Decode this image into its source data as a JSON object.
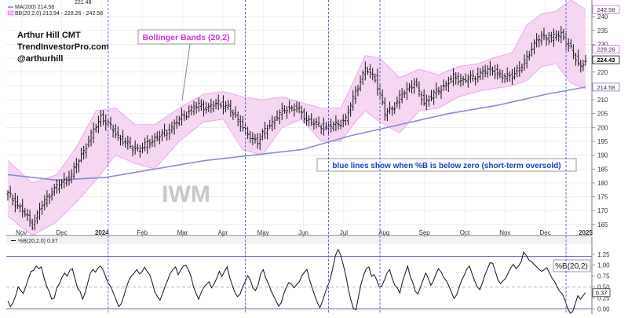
{
  "chart_data": [
    {
      "type": "ohlc",
      "panel": "price",
      "ticker_watermark": "IWM",
      "author_lines": [
        "Arthur Hill CMT",
        "TrendInvestorPro.com",
        "@arthurhill"
      ],
      "legend": [
        {
          "name": "MA(200) 214.58",
          "color": "#7b7bd0"
        },
        {
          "name": "BB(20,2.0) 213.94 - 228.26 - 242.58",
          "color": "#e060e0"
        }
      ],
      "legend_top_partial": "221.48",
      "annotations": {
        "bollinger_label": "Bollinger Bands (20,2)",
        "note": "blue lines show when %B is below zero (short-term oversold)"
      },
      "y_ticks": [
        165,
        170,
        175,
        180,
        185,
        190,
        195,
        200,
        205,
        210,
        215,
        220,
        225,
        230,
        235,
        240
      ],
      "ylim": [
        161,
        246
      ],
      "price_labels": [
        {
          "value": 242.58,
          "text": "242.58",
          "color": "#e060e0"
        },
        {
          "value": 228.26,
          "text": "228.26",
          "color": "#e060e0"
        },
        {
          "value": 224.43,
          "text": "224.43",
          "color": "#000000"
        },
        {
          "value": 214.58,
          "text": "214.58",
          "color": "#7b7bd0"
        }
      ],
      "x_months": [
        {
          "label": "Nov",
          "bold": false
        },
        {
          "label": "Dec",
          "bold": false
        },
        {
          "label": "2024",
          "bold": true
        },
        {
          "label": "Feb",
          "bold": false
        },
        {
          "label": "Mar",
          "bold": false
        },
        {
          "label": "Apr",
          "bold": false
        },
        {
          "label": "May",
          "bold": false
        },
        {
          "label": "Jun",
          "bold": false
        },
        {
          "label": "Jul",
          "bold": false
        },
        {
          "label": "Aug",
          "bold": false
        },
        {
          "label": "Sep",
          "bold": false
        },
        {
          "label": "Oct",
          "bold": false
        },
        {
          "label": "Nov",
          "bold": false
        },
        {
          "label": "Dec",
          "bold": false
        },
        {
          "label": "2025",
          "bold": true
        }
      ],
      "close_path": [
        [
          0,
          176
        ],
        [
          6,
          170
        ],
        [
          10,
          165
        ],
        [
          14,
          172
        ],
        [
          18,
          177
        ],
        [
          22,
          180
        ],
        [
          26,
          183
        ],
        [
          30,
          190
        ],
        [
          34,
          197
        ],
        [
          38,
          204
        ],
        [
          42,
          200
        ],
        [
          46,
          196
        ],
        [
          50,
          193
        ],
        [
          54,
          192
        ],
        [
          58,
          195
        ],
        [
          62,
          197
        ],
        [
          66,
          199
        ],
        [
          70,
          203
        ],
        [
          74,
          206
        ],
        [
          78,
          208
        ],
        [
          82,
          207
        ],
        [
          86,
          209
        ],
        [
          90,
          207
        ],
        [
          94,
          203
        ],
        [
          98,
          197
        ],
        [
          102,
          195
        ],
        [
          106,
          200
        ],
        [
          110,
          204
        ],
        [
          114,
          207
        ],
        [
          118,
          207
        ],
        [
          122,
          203
        ],
        [
          126,
          201
        ],
        [
          130,
          200
        ],
        [
          134,
          201
        ],
        [
          138,
          203
        ],
        [
          142,
          213
        ],
        [
          146,
          221
        ],
        [
          150,
          218
        ],
        [
          154,
          205
        ],
        [
          158,
          208
        ],
        [
          162,
          213
        ],
        [
          166,
          216
        ],
        [
          170,
          209
        ],
        [
          174,
          212
        ],
        [
          178,
          215
        ],
        [
          182,
          218
        ],
        [
          186,
          217
        ],
        [
          190,
          218
        ],
        [
          194,
          220
        ],
        [
          198,
          221
        ],
        [
          202,
          218
        ],
        [
          206,
          219
        ],
        [
          210,
          222
        ],
        [
          214,
          229
        ],
        [
          218,
          233
        ],
        [
          222,
          232
        ],
        [
          226,
          234
        ],
        [
          230,
          228
        ],
        [
          234,
          222
        ],
        [
          236,
          224.43
        ]
      ],
      "ma200_path": [
        [
          0,
          183
        ],
        [
          20,
          181
        ],
        [
          40,
          182
        ],
        [
          60,
          185
        ],
        [
          80,
          188
        ],
        [
          100,
          190
        ],
        [
          120,
          192
        ],
        [
          140,
          197
        ],
        [
          160,
          201
        ],
        [
          180,
          205
        ],
        [
          200,
          208
        ],
        [
          220,
          212
        ],
        [
          236,
          214.58
        ]
      ],
      "bb_upper_path": [
        [
          0,
          188
        ],
        [
          10,
          180
        ],
        [
          20,
          183
        ],
        [
          28,
          193
        ],
        [
          36,
          206
        ],
        [
          44,
          207
        ],
        [
          52,
          201
        ],
        [
          60,
          201
        ],
        [
          70,
          207
        ],
        [
          80,
          212
        ],
        [
          88,
          213
        ],
        [
          96,
          211
        ],
        [
          104,
          210
        ],
        [
          112,
          211
        ],
        [
          120,
          209
        ],
        [
          128,
          207
        ],
        [
          136,
          207
        ],
        [
          142,
          218
        ],
        [
          146,
          226
        ],
        [
          152,
          225
        ],
        [
          160,
          218
        ],
        [
          168,
          221
        ],
        [
          176,
          219
        ],
        [
          184,
          222
        ],
        [
          192,
          223
        ],
        [
          198,
          225
        ],
        [
          206,
          227
        ],
        [
          212,
          237
        ],
        [
          218,
          241
        ],
        [
          224,
          242
        ],
        [
          230,
          246
        ],
        [
          236,
          242.58
        ]
      ],
      "bb_lower_path": [
        [
          0,
          168
        ],
        [
          10,
          161
        ],
        [
          20,
          166
        ],
        [
          28,
          173
        ],
        [
          36,
          181
        ],
        [
          44,
          190
        ],
        [
          52,
          187
        ],
        [
          60,
          185
        ],
        [
          70,
          195
        ],
        [
          80,
          202
        ],
        [
          88,
          203
        ],
        [
          96,
          192
        ],
        [
          104,
          190
        ],
        [
          112,
          200
        ],
        [
          120,
          203
        ],
        [
          128,
          195
        ],
        [
          136,
          195
        ],
        [
          142,
          202
        ],
        [
          146,
          206
        ],
        [
          152,
          202
        ],
        [
          160,
          198
        ],
        [
          168,
          206
        ],
        [
          176,
          207
        ],
        [
          184,
          211
        ],
        [
          192,
          213
        ],
        [
          198,
          214
        ],
        [
          206,
          215
        ],
        [
          212,
          217
        ],
        [
          218,
          222
        ],
        [
          224,
          223
        ],
        [
          230,
          216
        ],
        [
          236,
          213.94
        ]
      ],
      "oversold_markers_x": [
        41,
        97,
        131,
        152,
        228
      ]
    },
    {
      "type": "line",
      "panel": "indicator",
      "name": "%B(20,2.0) 0.37",
      "label": "%B(20,2)",
      "y_ticks": [
        0.0,
        0.25,
        0.5,
        0.75,
        1.0,
        1.25
      ],
      "ylim": [
        -0.12,
        1.48
      ],
      "reference_lines": [
        {
          "value": 1.2,
          "color": "#7070c0"
        },
        {
          "value": 0.0,
          "color": "#7070c0"
        },
        {
          "value": 0.5,
          "color": "#999999"
        }
      ],
      "current_label": "0.37",
      "values": [
        0.18,
        0.05,
        0.14,
        0.3,
        0.5,
        0.42,
        0.35,
        0.52,
        0.7,
        0.86,
        0.88,
        0.98,
        0.92,
        0.96,
        0.72,
        0.52,
        0.4,
        0.22,
        0.25,
        0.48,
        0.58,
        0.72,
        0.82,
        0.75,
        0.88,
        0.92,
        0.7,
        0.48,
        0.4,
        0.22,
        0.38,
        0.6,
        0.82,
        0.9,
        0.84,
        0.94,
        0.98,
        0.88,
        0.72,
        0.58,
        0.5,
        0.35,
        0.2,
        0.05,
        0.12,
        0.3,
        0.5,
        0.66,
        0.76,
        0.82,
        0.9,
        0.8,
        0.85,
        0.95,
        0.86,
        0.78,
        0.6,
        0.38,
        0.28,
        0.2,
        0.35,
        0.52,
        0.66,
        0.82,
        0.9,
        0.96,
        0.78,
        0.88,
        0.98,
        1.0,
        0.9,
        0.74,
        0.5,
        0.35,
        0.22,
        0.38,
        0.5,
        0.56,
        0.62,
        0.48,
        0.58,
        0.7,
        0.86,
        0.74,
        0.86,
        0.96,
        0.72,
        0.54,
        0.38,
        0.28,
        0.33,
        0.5,
        0.62,
        0.76,
        0.66,
        0.48,
        0.42,
        0.54,
        0.8,
        0.9,
        0.7,
        0.58,
        0.42,
        0.3,
        0.18,
        0.06,
        0.14,
        0.35,
        0.5,
        0.6,
        0.56,
        0.48,
        0.56,
        0.62,
        0.76,
        0.84,
        0.9,
        0.66,
        0.48,
        0.3,
        0.14,
        0.03,
        0.18,
        0.36,
        0.52,
        0.68,
        0.94,
        1.22,
        1.36,
        1.24,
        1.02,
        0.78,
        0.46,
        0.2,
        0.0,
        -0.02,
        0.3,
        0.58,
        0.78,
        0.92,
        0.96,
        0.74,
        0.78,
        0.66,
        0.5,
        0.52,
        0.66,
        0.82,
        0.9,
        0.7,
        0.54,
        0.48,
        0.36,
        0.62,
        0.8,
        0.98,
        0.74,
        0.6,
        0.4,
        0.34,
        0.5,
        0.66,
        0.82,
        0.7,
        0.54,
        0.64,
        0.8,
        0.92,
        0.84,
        0.72,
        0.64,
        0.52,
        0.38,
        0.24,
        0.32,
        0.5,
        0.66,
        0.78,
        0.92,
        0.98,
        0.8,
        0.64,
        0.5,
        0.44,
        0.6,
        0.78,
        0.92,
        1.06,
        1.04,
        0.86,
        0.66,
        0.58,
        0.64,
        0.7,
        0.82,
        0.94,
        1.02,
        0.92,
        0.98,
        1.08,
        1.3,
        1.22,
        1.12,
        1.08,
        1.02,
        0.96,
        0.9,
        0.86,
        0.9,
        0.94,
        0.82,
        0.7,
        0.62,
        0.5,
        0.4,
        0.34,
        0.2,
        0.02,
        -0.1,
        -0.06,
        0.12,
        0.3,
        0.22,
        0.3,
        0.37
      ]
    }
  ]
}
